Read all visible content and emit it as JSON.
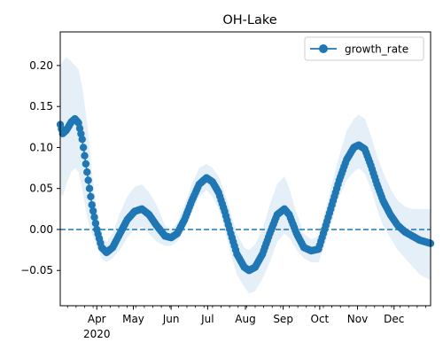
{
  "chart_data": {
    "type": "line",
    "title": "OH-Lake",
    "xlabel": "",
    "ylabel": "",
    "year_label": "2020",
    "x_start": "2020-03-02",
    "x_end": "2020-12-31",
    "ylim": [
      -0.093,
      0.241
    ],
    "y_ticks": [
      -0.05,
      0.0,
      0.05,
      0.1,
      0.15,
      0.2
    ],
    "y_tick_labels": [
      "−0.05",
      "0.00",
      "0.05",
      "0.10",
      "0.15",
      "0.20"
    ],
    "x_major_ticks": [
      {
        "date": "2020-04-01",
        "label": "Apr"
      },
      {
        "date": "2020-05-01",
        "label": "May"
      },
      {
        "date": "2020-06-01",
        "label": "Jun"
      },
      {
        "date": "2020-07-01",
        "label": "Jul"
      },
      {
        "date": "2020-08-01",
        "label": "Aug"
      },
      {
        "date": "2020-09-01",
        "label": "Sep"
      },
      {
        "date": "2020-10-01",
        "label": "Oct"
      },
      {
        "date": "2020-11-01",
        "label": "Nov"
      },
      {
        "date": "2020-12-01",
        "label": "Dec"
      }
    ],
    "legend": {
      "position": "top-right",
      "label": "growth_rate"
    },
    "zero_line": {
      "y": 0.0,
      "style": "dashed"
    },
    "grid": false,
    "colors": {
      "line": "#1f77b4",
      "band": "#c6dbef",
      "zero": "#1f77b4"
    },
    "series": [
      {
        "name": "growth_rate",
        "key_points": [
          {
            "date": "2020-03-02",
            "y": 0.128,
            "lo": 0.045,
            "hi": 0.2
          },
          {
            "date": "2020-03-04",
            "y": 0.117,
            "lo": 0.04,
            "hi": 0.205
          },
          {
            "date": "2020-03-07",
            "y": 0.121,
            "lo": 0.055,
            "hi": 0.21
          },
          {
            "date": "2020-03-11",
            "y": 0.131,
            "lo": 0.07,
            "hi": 0.205
          },
          {
            "date": "2020-03-14",
            "y": 0.135,
            "lo": 0.075,
            "hi": 0.2
          },
          {
            "date": "2020-03-17",
            "y": 0.13,
            "lo": 0.07,
            "hi": 0.195
          },
          {
            "date": "2020-03-20",
            "y": 0.11,
            "lo": 0.05,
            "hi": 0.175
          },
          {
            "date": "2020-03-24",
            "y": 0.07,
            "lo": 0.015,
            "hi": 0.13
          },
          {
            "date": "2020-03-28",
            "y": 0.03,
            "lo": -0.005,
            "hi": 0.07
          },
          {
            "date": "2020-04-01",
            "y": 0.0,
            "lo": -0.02,
            "hi": 0.025
          },
          {
            "date": "2020-04-05",
            "y": -0.022,
            "lo": -0.035,
            "hi": -0.008
          },
          {
            "date": "2020-04-09",
            "y": -0.028,
            "lo": -0.04,
            "hi": -0.015
          },
          {
            "date": "2020-04-14",
            "y": -0.022,
            "lo": -0.035,
            "hi": -0.005
          },
          {
            "date": "2020-04-20",
            "y": -0.005,
            "lo": -0.025,
            "hi": 0.02
          },
          {
            "date": "2020-04-26",
            "y": 0.012,
            "lo": -0.01,
            "hi": 0.04
          },
          {
            "date": "2020-05-02",
            "y": 0.022,
            "lo": 0.0,
            "hi": 0.052
          },
          {
            "date": "2020-05-08",
            "y": 0.025,
            "lo": 0.003,
            "hi": 0.055
          },
          {
            "date": "2020-05-14",
            "y": 0.018,
            "lo": -0.005,
            "hi": 0.045
          },
          {
            "date": "2020-05-20",
            "y": 0.005,
            "lo": -0.015,
            "hi": 0.03
          },
          {
            "date": "2020-05-27",
            "y": -0.008,
            "lo": -0.02,
            "hi": 0.005
          },
          {
            "date": "2020-06-01",
            "y": -0.01,
            "lo": -0.02,
            "hi": 0.0
          },
          {
            "date": "2020-06-06",
            "y": -0.005,
            "lo": -0.015,
            "hi": 0.008
          },
          {
            "date": "2020-06-12",
            "y": 0.012,
            "lo": 0.0,
            "hi": 0.03
          },
          {
            "date": "2020-06-18",
            "y": 0.035,
            "lo": 0.02,
            "hi": 0.055
          },
          {
            "date": "2020-06-24",
            "y": 0.055,
            "lo": 0.04,
            "hi": 0.075
          },
          {
            "date": "2020-06-30",
            "y": 0.063,
            "lo": 0.048,
            "hi": 0.08
          },
          {
            "date": "2020-07-05",
            "y": 0.058,
            "lo": 0.04,
            "hi": 0.075
          },
          {
            "date": "2020-07-10",
            "y": 0.045,
            "lo": 0.025,
            "hi": 0.065
          },
          {
            "date": "2020-07-15",
            "y": 0.022,
            "lo": 0.0,
            "hi": 0.045
          },
          {
            "date": "2020-07-20",
            "y": -0.005,
            "lo": -0.03,
            "hi": 0.02
          },
          {
            "date": "2020-07-25",
            "y": -0.03,
            "lo": -0.055,
            "hi": -0.005
          },
          {
            "date": "2020-07-31",
            "y": -0.046,
            "lo": -0.07,
            "hi": -0.022
          },
          {
            "date": "2020-08-04",
            "y": -0.05,
            "lo": -0.078,
            "hi": -0.025
          },
          {
            "date": "2020-08-09",
            "y": -0.046,
            "lo": -0.075,
            "hi": -0.018
          },
          {
            "date": "2020-08-15",
            "y": -0.03,
            "lo": -0.06,
            "hi": 0.0
          },
          {
            "date": "2020-08-21",
            "y": -0.005,
            "lo": -0.04,
            "hi": 0.03
          },
          {
            "date": "2020-08-27",
            "y": 0.018,
            "lo": -0.015,
            "hi": 0.055
          },
          {
            "date": "2020-09-02",
            "y": 0.025,
            "lo": -0.005,
            "hi": 0.065
          },
          {
            "date": "2020-09-06",
            "y": 0.018,
            "lo": -0.01,
            "hi": 0.05
          },
          {
            "date": "2020-09-12",
            "y": -0.005,
            "lo": -0.025,
            "hi": 0.02
          },
          {
            "date": "2020-09-18",
            "y": -0.022,
            "lo": -0.035,
            "hi": -0.005
          },
          {
            "date": "2020-09-24",
            "y": -0.026,
            "lo": -0.04,
            "hi": -0.012
          },
          {
            "date": "2020-09-30",
            "y": -0.024,
            "lo": -0.04,
            "hi": -0.008
          },
          {
            "date": "2020-10-05",
            "y": 0.0,
            "lo": -0.02,
            "hi": 0.02
          },
          {
            "date": "2020-10-11",
            "y": 0.03,
            "lo": 0.01,
            "hi": 0.055
          },
          {
            "date": "2020-10-17",
            "y": 0.06,
            "lo": 0.04,
            "hi": 0.09
          },
          {
            "date": "2020-10-23",
            "y": 0.085,
            "lo": 0.06,
            "hi": 0.12
          },
          {
            "date": "2020-10-29",
            "y": 0.1,
            "lo": 0.07,
            "hi": 0.135
          },
          {
            "date": "2020-11-02",
            "y": 0.103,
            "lo": 0.075,
            "hi": 0.14
          },
          {
            "date": "2020-11-07",
            "y": 0.098,
            "lo": 0.068,
            "hi": 0.135
          },
          {
            "date": "2020-11-12",
            "y": 0.078,
            "lo": 0.05,
            "hi": 0.115
          },
          {
            "date": "2020-11-17",
            "y": 0.055,
            "lo": 0.025,
            "hi": 0.09
          },
          {
            "date": "2020-11-22",
            "y": 0.035,
            "lo": 0.005,
            "hi": 0.07
          },
          {
            "date": "2020-11-28",
            "y": 0.018,
            "lo": -0.01,
            "hi": 0.05
          },
          {
            "date": "2020-12-04",
            "y": 0.005,
            "lo": -0.025,
            "hi": 0.035
          },
          {
            "date": "2020-12-10",
            "y": -0.003,
            "lo": -0.035,
            "hi": 0.028
          },
          {
            "date": "2020-12-16",
            "y": -0.008,
            "lo": -0.045,
            "hi": 0.025
          },
          {
            "date": "2020-12-22",
            "y": -0.013,
            "lo": -0.055,
            "hi": 0.025
          },
          {
            "date": "2020-12-31",
            "y": -0.017,
            "lo": -0.062,
            "hi": 0.025
          }
        ]
      }
    ]
  }
}
